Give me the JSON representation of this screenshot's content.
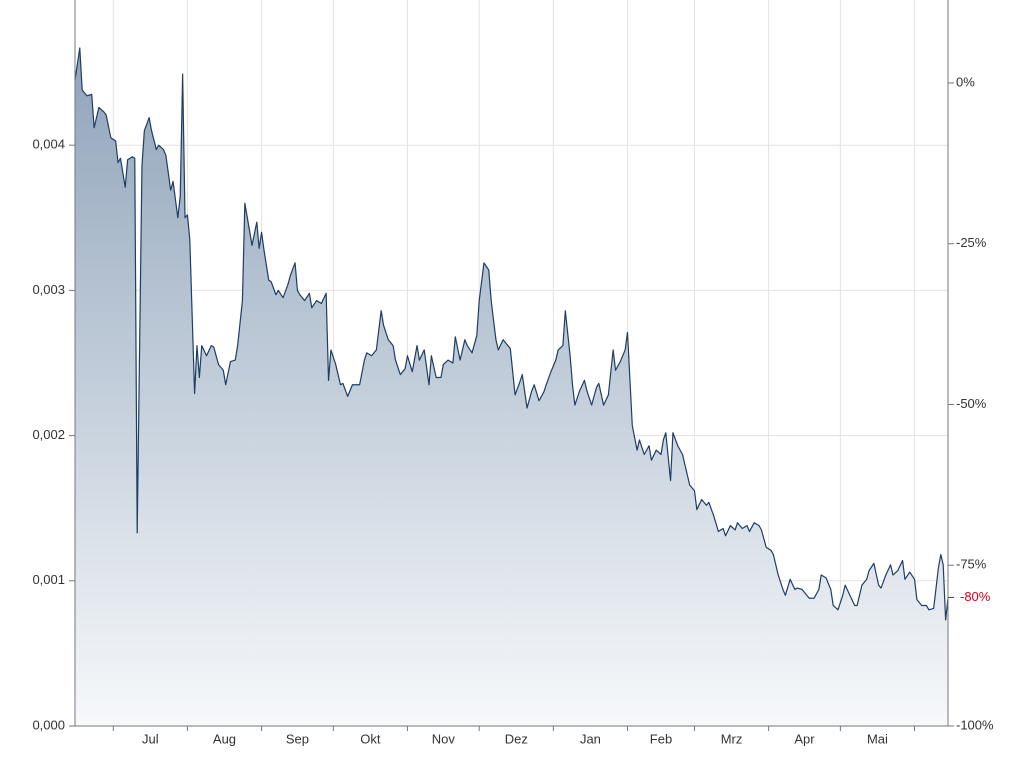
{
  "chart_data": {
    "type": "area",
    "color": "#1f3d63",
    "fill_color_top": "#8fa3ba",
    "fill_color_bottom": "#f7f9fb",
    "grid": true,
    "xlim": [
      0,
      365
    ],
    "x_gridlines": [
      16,
      47,
      78,
      108,
      139,
      169,
      200,
      231,
      259,
      290,
      320,
      351
    ],
    "xticks": [
      {
        "value": 31.5,
        "label": "Jul"
      },
      {
        "value": 62.5,
        "label": "Aug"
      },
      {
        "value": 93,
        "label": "Sep"
      },
      {
        "value": 123.5,
        "label": "Okt"
      },
      {
        "value": 154,
        "label": "Nov"
      },
      {
        "value": 184.5,
        "label": "Dez"
      },
      {
        "value": 215.5,
        "label": "Jan"
      },
      {
        "value": 245,
        "label": "Feb"
      },
      {
        "value": 274.5,
        "label": "Mrz"
      },
      {
        "value": 305,
        "label": "Apr"
      },
      {
        "value": 335.5,
        "label": "Mai"
      }
    ],
    "ylim": [
      0,
      0.005
    ],
    "yticks": [
      {
        "value": 0,
        "label": "0,000"
      },
      {
        "value": 0.001,
        "label": "0,001"
      },
      {
        "value": 0.002,
        "label": "0,002"
      },
      {
        "value": 0.003,
        "label": "0,003"
      },
      {
        "value": 0.004,
        "label": "0,004"
      }
    ],
    "y2lim": [
      -100,
      12.9
    ],
    "y2ticks": [
      {
        "value": 0,
        "label": "0%"
      },
      {
        "value": -25,
        "label": "-25%"
      },
      {
        "value": -50,
        "label": "-50%"
      },
      {
        "value": -75,
        "label": "-75%"
      },
      {
        "value": -100,
        "label": "-100%"
      }
    ],
    "y2_marker": {
      "value": -80,
      "label": "-80%",
      "color": "#d0021b"
    },
    "x": [
      0,
      2,
      3,
      5,
      7,
      8,
      10,
      12,
      13,
      15,
      17,
      18,
      19,
      21,
      22,
      24,
      25,
      26,
      28,
      29,
      31,
      32,
      34,
      35,
      37,
      38,
      40,
      41,
      43,
      44,
      45,
      46,
      47,
      48,
      50,
      51,
      52,
      53,
      55,
      57,
      58,
      60,
      62,
      63,
      65,
      67,
      68,
      70,
      71,
      73,
      74,
      76,
      77,
      78,
      79,
      81,
      82,
      84,
      85,
      87,
      89,
      90,
      92,
      93,
      94,
      96,
      98,
      99,
      101,
      103,
      105,
      106,
      107,
      109,
      111,
      112,
      114,
      116,
      117,
      119,
      121,
      122,
      124,
      126,
      128,
      129,
      131,
      133,
      134,
      136,
      138,
      139,
      141,
      143,
      144,
      146,
      148,
      149,
      151,
      153,
      154,
      156,
      158,
      159,
      161,
      163,
      164,
      166,
      168,
      169,
      171,
      173,
      174,
      176,
      177,
      179,
      181,
      182,
      184,
      186,
      187,
      189,
      191,
      192,
      194,
      196,
      197,
      199,
      201,
      202,
      204,
      205,
      207,
      208,
      209,
      211,
      213,
      214,
      216,
      218,
      219,
      221,
      223,
      225,
      226,
      228,
      230,
      231,
      233,
      235,
      236,
      238,
      240,
      241,
      243,
      245,
      246,
      247,
      249,
      250,
      252,
      254,
      255,
      257,
      259,
      260,
      262,
      264,
      265,
      267,
      269,
      271,
      272,
      274,
      276,
      277,
      279,
      281,
      282,
      284,
      286,
      287,
      289,
      291,
      292,
      294,
      296,
      297,
      299,
      301,
      302,
      304,
      306,
      307,
      309,
      311,
      312,
      314,
      316,
      317,
      319,
      321,
      322,
      324,
      326,
      327,
      329,
      331,
      332,
      334,
      336,
      337,
      339,
      341,
      342,
      344,
      346,
      347,
      349,
      351,
      352,
      354,
      356,
      357,
      359,
      361,
      362,
      363,
      364,
      365
    ],
    "values": [
      0.00445,
      0.00467,
      0.00438,
      0.00434,
      0.00435,
      0.00412,
      0.00426,
      0.00423,
      0.00421,
      0.00405,
      0.00403,
      0.00388,
      0.00391,
      0.00371,
      0.0039,
      0.00392,
      0.00391,
      0.00133,
      0.00386,
      0.0041,
      0.00419,
      0.0041,
      0.00397,
      0.004,
      0.00397,
      0.00393,
      0.00369,
      0.00375,
      0.0035,
      0.00365,
      0.00449,
      0.0035,
      0.00352,
      0.00335,
      0.00229,
      0.00262,
      0.0024,
      0.00262,
      0.00255,
      0.00262,
      0.00261,
      0.00249,
      0.00245,
      0.00235,
      0.00251,
      0.00252,
      0.00262,
      0.00293,
      0.0036,
      0.00341,
      0.00331,
      0.00347,
      0.00329,
      0.0034,
      0.00328,
      0.00307,
      0.00306,
      0.00297,
      0.003,
      0.00295,
      0.00304,
      0.0031,
      0.00319,
      0.003,
      0.00297,
      0.00293,
      0.00298,
      0.00288,
      0.00293,
      0.00291,
      0.00298,
      0.00238,
      0.00259,
      0.00249,
      0.00235,
      0.00236,
      0.00227,
      0.00235,
      0.00235,
      0.00235,
      0.00252,
      0.00257,
      0.00255,
      0.00259,
      0.00286,
      0.00276,
      0.00266,
      0.00262,
      0.00252,
      0.00242,
      0.00246,
      0.00255,
      0.00244,
      0.00262,
      0.00252,
      0.00259,
      0.00235,
      0.00255,
      0.0024,
      0.0024,
      0.00249,
      0.00252,
      0.0025,
      0.00268,
      0.00252,
      0.00266,
      0.00262,
      0.00257,
      0.00269,
      0.00293,
      0.00319,
      0.00314,
      0.00293,
      0.00266,
      0.00259,
      0.00266,
      0.00262,
      0.0026,
      0.00228,
      0.00237,
      0.00242,
      0.00219,
      0.00231,
      0.00235,
      0.00224,
      0.0023,
      0.00235,
      0.00244,
      0.00252,
      0.00259,
      0.00262,
      0.00286,
      0.00255,
      0.00235,
      0.00221,
      0.00231,
      0.00238,
      0.00231,
      0.00221,
      0.00233,
      0.00236,
      0.00221,
      0.00228,
      0.00259,
      0.00245,
      0.00251,
      0.00259,
      0.00271,
      0.00207,
      0.0019,
      0.00197,
      0.00187,
      0.00193,
      0.00183,
      0.0019,
      0.00187,
      0.00197,
      0.00202,
      0.00169,
      0.00202,
      0.00193,
      0.00187,
      0.0018,
      0.00166,
      0.00162,
      0.00149,
      0.00156,
      0.00152,
      0.00154,
      0.00145,
      0.00134,
      0.00136,
      0.00131,
      0.00138,
      0.00135,
      0.0014,
      0.00136,
      0.00138,
      0.00134,
      0.0014,
      0.00138,
      0.00135,
      0.00123,
      0.00121,
      0.00118,
      0.00104,
      0.00094,
      0.0009,
      0.00101,
      0.00094,
      0.00095,
      0.00094,
      0.0009,
      0.00088,
      0.00088,
      0.00094,
      0.00104,
      0.00102,
      0.00094,
      0.00083,
      0.0008,
      0.0009,
      0.00097,
      0.0009,
      0.00083,
      0.00083,
      0.00097,
      0.00101,
      0.00107,
      0.00112,
      0.00097,
      0.00095,
      0.00104,
      0.00111,
      0.00104,
      0.00107,
      0.00114,
      0.00101,
      0.00106,
      0.00101,
      0.00087,
      0.00083,
      0.00083,
      0.0008,
      0.00081,
      0.00109,
      0.00118,
      0.00111,
      0.00073,
      0.00088
    ]
  }
}
